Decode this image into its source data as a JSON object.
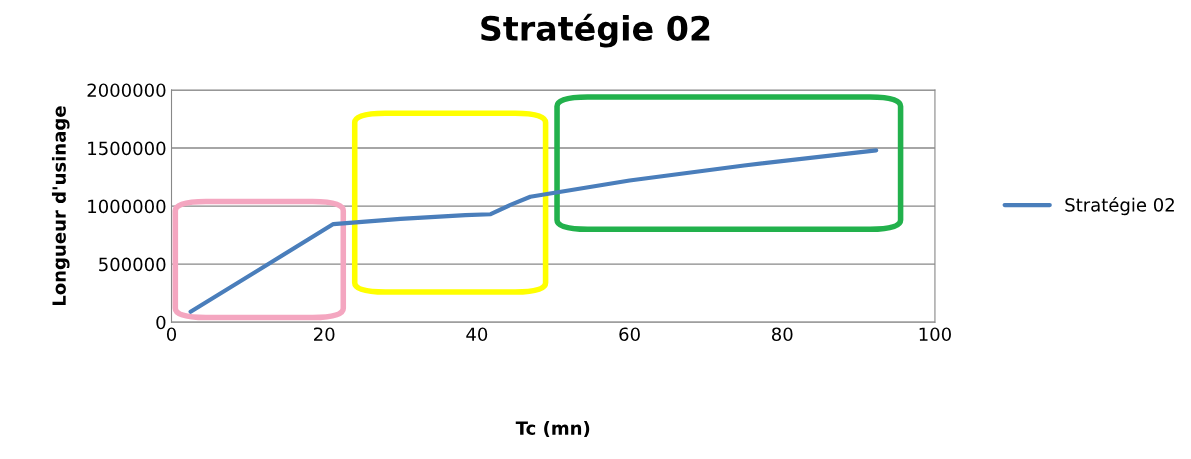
{
  "chart_data": {
    "type": "line",
    "title": "Stratégie 02",
    "xlabel": "Tc (mn)",
    "ylabel": "Longueur d'usinage",
    "series": [
      {
        "name": "Stratégie 02",
        "color": "#4a7ebb",
        "x": [
          2.5,
          21.2,
          30,
          38.5,
          41.8,
          44.4,
          47,
          60,
          75,
          92.3
        ],
        "values": [
          90000,
          845000,
          890000,
          922000,
          930000,
          1010000,
          1080000,
          1220000,
          1350000,
          1480000
        ]
      }
    ],
    "xlim": [
      0,
      100
    ],
    "xticks": [
      0,
      20,
      40,
      60,
      80,
      100
    ],
    "ylim": [
      0,
      2000000
    ],
    "yticks": [
      0,
      500000,
      1000000,
      1500000,
      2000000
    ],
    "grid": "y",
    "legend": "right",
    "marker": "none",
    "line_style": "solid"
  }
}
